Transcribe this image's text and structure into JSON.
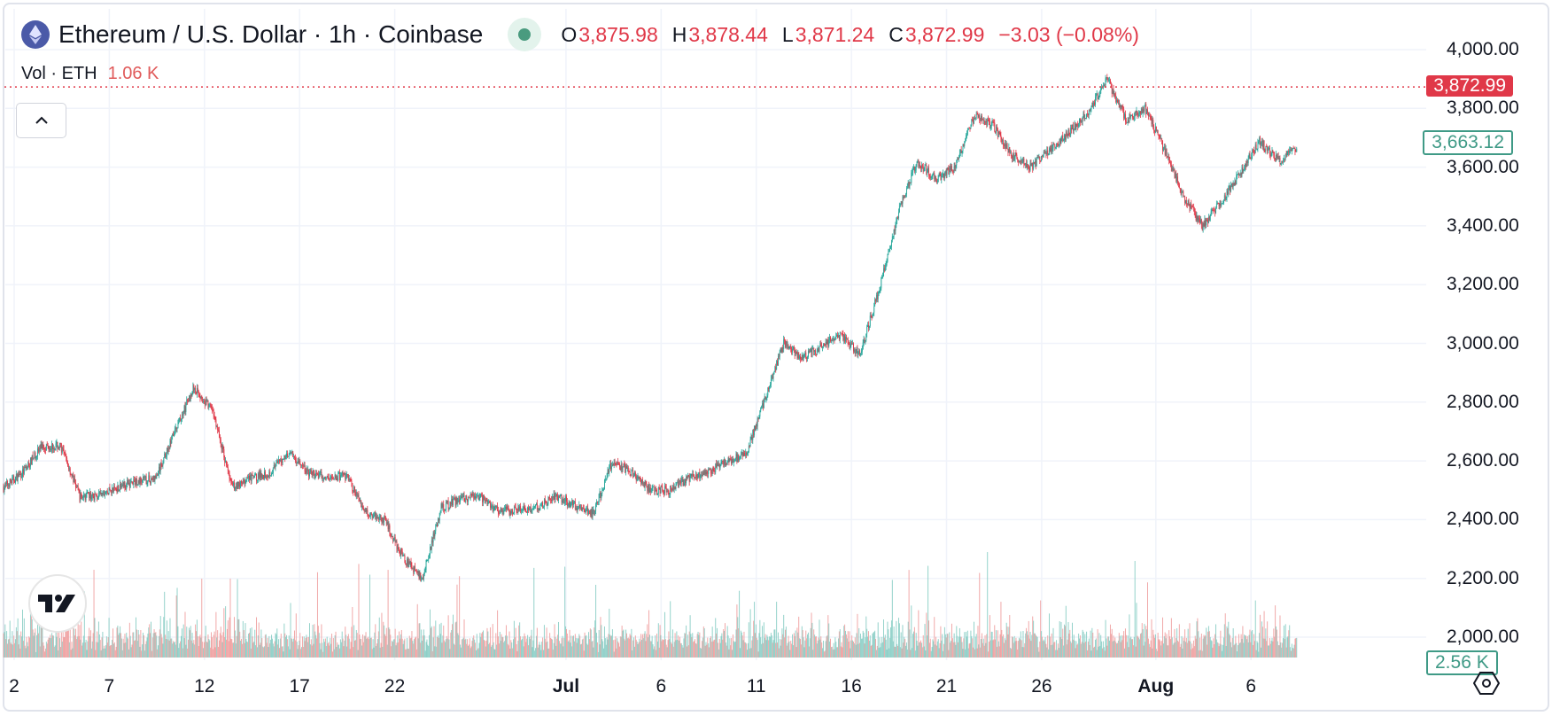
{
  "header": {
    "title": "Ethereum / U.S. Dollar · 1h · Coinbase",
    "icon": "ethereum-icon",
    "status": "market-open-dot",
    "ohlc": {
      "o_label": "O",
      "o": "3,875.98",
      "h_label": "H",
      "h": "3,878.44",
      "l_label": "L",
      "l": "3,871.24",
      "c_label": "C",
      "c": "3,872.99",
      "change": "−3.03 (−0.08%)"
    }
  },
  "volume": {
    "label": "Vol · ETH",
    "value": "1.06 K"
  },
  "labels": {
    "last_price": "3,872.99",
    "crosshair_price": "3,663.12",
    "volume_value": "2.56 K"
  },
  "colors": {
    "up": "#26a69a",
    "down": "#e03848",
    "vol_up": "#8fd0c8",
    "vol_down": "#f0a4a4",
    "grid": "#f0f3fa",
    "last_price": "#e03848"
  },
  "chart_data": {
    "type": "candlestick",
    "interval": "1h",
    "y_ticks": [
      "4,000.00",
      "3,800.00",
      "3,600.00",
      "3,400.00",
      "3,200.00",
      "3,000.00",
      "2,800.00",
      "2,600.00",
      "2,400.00",
      "2,200.00",
      "2,000.00"
    ],
    "ylim": [
      1930,
      4170
    ],
    "x_ticks": [
      {
        "label": "2",
        "day": 0,
        "bold": false
      },
      {
        "label": "7",
        "day": 5,
        "bold": false
      },
      {
        "label": "12",
        "day": 10,
        "bold": false
      },
      {
        "label": "17",
        "day": 15,
        "bold": false
      },
      {
        "label": "22",
        "day": 20,
        "bold": false
      },
      {
        "label": "Jul",
        "day": 29,
        "bold": true
      },
      {
        "label": "6",
        "day": 34,
        "bold": false
      },
      {
        "label": "11",
        "day": 39,
        "bold": false
      },
      {
        "label": "16",
        "day": 44,
        "bold": false
      },
      {
        "label": "21",
        "day": 49,
        "bold": false
      },
      {
        "label": "26",
        "day": 54,
        "bold": false
      },
      {
        "label": "Aug",
        "day": 60,
        "bold": true
      },
      {
        "label": "6",
        "day": 65,
        "bold": false
      }
    ],
    "start_date": "Jun 2",
    "approx_daily_close": [
      2510,
      2560,
      2650,
      2650,
      2480,
      2480,
      2510,
      2530,
      2540,
      2700,
      2850,
      2770,
      2510,
      2540,
      2560,
      2630,
      2560,
      2540,
      2550,
      2430,
      2400,
      2270,
      2200,
      2440,
      2470,
      2480,
      2430,
      2430,
      2440,
      2480,
      2450,
      2420,
      2600,
      2560,
      2500,
      2500,
      2540,
      2560,
      2600,
      2620,
      2810,
      3000,
      2950,
      2990,
      3030,
      2960,
      3180,
      3440,
      3620,
      3560,
      3600,
      3770,
      3740,
      3640,
      3600,
      3660,
      3720,
      3790,
      3900,
      3760,
      3800,
      3660,
      3500,
      3400,
      3480,
      3580,
      3690,
      3620,
      3663
    ],
    "last_price": 3872.99,
    "crosshair_price": 3663.12
  }
}
